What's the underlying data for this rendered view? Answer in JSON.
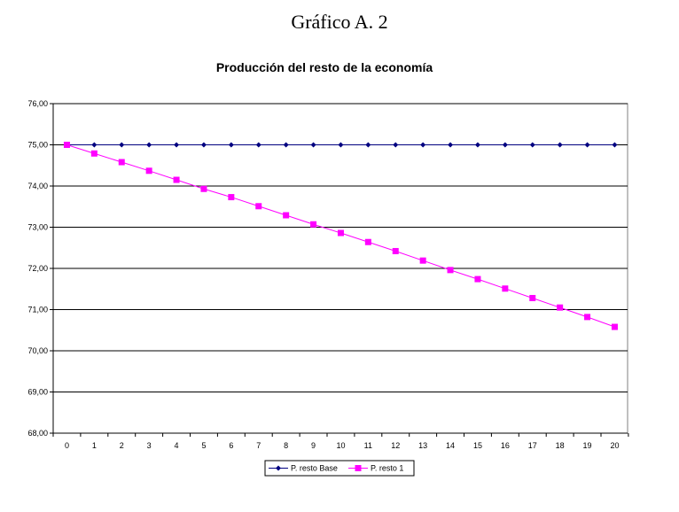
{
  "page": {
    "heading": "Gráfico A. 2"
  },
  "chart_data": {
    "type": "line",
    "title": "Producción del resto de la economía",
    "xlabel": "",
    "ylabel": "",
    "x": [
      0,
      1,
      2,
      3,
      4,
      5,
      6,
      7,
      8,
      9,
      10,
      11,
      12,
      13,
      14,
      15,
      16,
      17,
      18,
      19,
      20
    ],
    "ylim": [
      68,
      76
    ],
    "yticks": [
      "68,00",
      "69,00",
      "70,00",
      "71,00",
      "72,00",
      "73,00",
      "74,00",
      "75,00",
      "76,00"
    ],
    "grid": true,
    "legend_position": "bottom",
    "series": [
      {
        "name": "P. resto Base",
        "color": "#000080",
        "marker": "diamond",
        "values": [
          75,
          75,
          75,
          75,
          75,
          75,
          75,
          75,
          75,
          75,
          75,
          75,
          75,
          75,
          75,
          75,
          75,
          75,
          75,
          75,
          75
        ]
      },
      {
        "name": "P. resto 1",
        "color": "#ff00ff",
        "marker": "square",
        "values": [
          75.0,
          74.79,
          74.58,
          74.37,
          74.15,
          73.93,
          73.73,
          73.51,
          73.29,
          73.07,
          72.86,
          72.64,
          72.42,
          72.19,
          71.96,
          71.74,
          71.51,
          71.28,
          71.05,
          70.82,
          70.58
        ]
      }
    ]
  }
}
